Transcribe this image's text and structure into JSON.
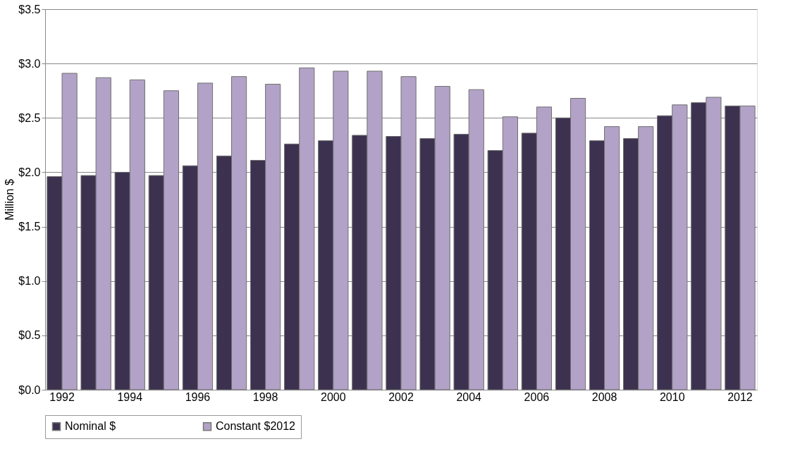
{
  "chart_data": {
    "type": "bar",
    "ylabel": "Million $",
    "categories": [
      "1992",
      null,
      "1994",
      null,
      "1996",
      null,
      "1998",
      null,
      "2000",
      null,
      "2002",
      null,
      "2004",
      null,
      "2006",
      null,
      "2008",
      null,
      "2010",
      null,
      "2012"
    ],
    "series": [
      {
        "name": "Nominal $",
        "color": "#3d3150",
        "values": [
          1.96,
          1.97,
          2.0,
          1.97,
          2.06,
          2.15,
          2.11,
          2.26,
          2.29,
          2.34,
          2.33,
          2.31,
          2.35,
          2.2,
          2.36,
          2.5,
          2.29,
          2.31,
          2.52,
          2.64,
          2.61
        ]
      },
      {
        "name": "Constant $2012",
        "color": "#b3a2c7",
        "values": [
          2.91,
          2.87,
          2.85,
          2.75,
          2.82,
          2.88,
          2.81,
          2.96,
          2.93,
          2.93,
          2.88,
          2.79,
          2.76,
          2.51,
          2.6,
          2.68,
          2.42,
          2.42,
          2.62,
          2.69,
          2.61
        ]
      }
    ],
    "ylim": [
      0,
      3.5
    ],
    "yticks": [
      {
        "value": 0,
        "label": "$0.0"
      },
      {
        "value": 0.5,
        "label": "$0.5"
      },
      {
        "value": 1.0,
        "label": "$1.0"
      },
      {
        "value": 1.5,
        "label": "$1.5"
      },
      {
        "value": 2.0,
        "label": "$2.0"
      },
      {
        "value": 2.5,
        "label": "$2.5"
      },
      {
        "value": 3.0,
        "label": "$3.0"
      },
      {
        "value": 3.5,
        "label": "$3.5"
      }
    ],
    "grid": "y",
    "legend": "bottom"
  }
}
